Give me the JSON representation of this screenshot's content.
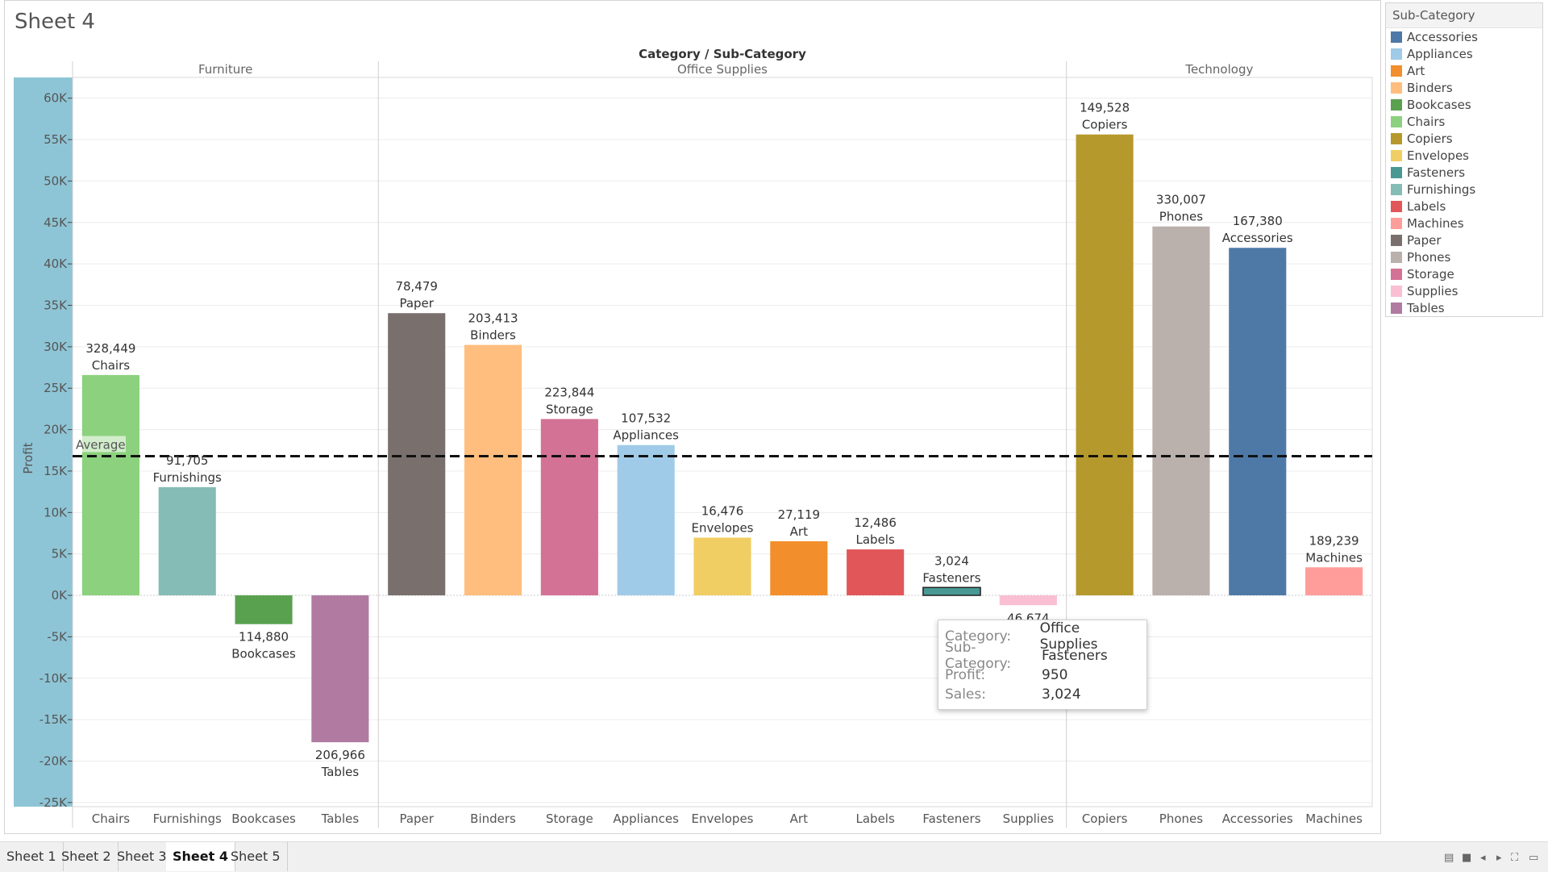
{
  "sheet_title": "Sheet 4",
  "tooltip": {
    "rows": [
      {
        "key": "Category:",
        "value": "Office Supplies"
      },
      {
        "key": "Sub-Category:",
        "value": "Fasteners"
      },
      {
        "key": "Profit:",
        "value": "950"
      },
      {
        "key": "Sales:",
        "value": "3,024"
      }
    ]
  },
  "tabs": [
    "Sheet 1",
    "Sheet 2",
    "Sheet 3",
    "Sheet 4",
    "Sheet 5"
  ],
  "active_tab": "Sheet 4",
  "legend": {
    "title": "Sub-Category",
    "items": [
      {
        "label": "Accessories",
        "color": "#4e79a7"
      },
      {
        "label": "Appliances",
        "color": "#a0cbe8"
      },
      {
        "label": "Art",
        "color": "#f28e2b"
      },
      {
        "label": "Binders",
        "color": "#ffbe7d"
      },
      {
        "label": "Bookcases",
        "color": "#59a14f"
      },
      {
        "label": "Chairs",
        "color": "#8cd17d"
      },
      {
        "label": "Copiers",
        "color": "#b6992d"
      },
      {
        "label": "Envelopes",
        "color": "#f1ce63"
      },
      {
        "label": "Fasteners",
        "color": "#499894"
      },
      {
        "label": "Furnishings",
        "color": "#86bcb6"
      },
      {
        "label": "Labels",
        "color": "#e15759"
      },
      {
        "label": "Machines",
        "color": "#ff9d9a"
      },
      {
        "label": "Paper",
        "color": "#79706e"
      },
      {
        "label": "Phones",
        "color": "#bab0ac"
      },
      {
        "label": "Storage",
        "color": "#d37295"
      },
      {
        "label": "Supplies",
        "color": "#fabfd2"
      },
      {
        "label": "Tables",
        "color": "#b07aa1"
      }
    ]
  },
  "chart_data": {
    "type": "bar",
    "header": "Category / Sub-Category",
    "ylabel": "Profit",
    "ylim": [
      -25500,
      62500
    ],
    "yticks": [
      60000,
      55000,
      50000,
      45000,
      40000,
      35000,
      30000,
      25000,
      20000,
      15000,
      10000,
      5000,
      0,
      -5000,
      -10000,
      -15000,
      -20000,
      -25000
    ],
    "ytick_labels": [
      "60K",
      "55K",
      "50K",
      "45K",
      "40K",
      "35K",
      "30K",
      "25K",
      "20K",
      "15K",
      "10K",
      "5K",
      "0K",
      "-5K",
      "-10K",
      "-15K",
      "-20K",
      "-25K"
    ],
    "average": 16800,
    "average_label": "Average",
    "categories": [
      {
        "name": "Furniture",
        "subcategories": [
          {
            "name": "Chairs",
            "profit": 26590,
            "sales": "328,449",
            "color": "#8cd17d"
          },
          {
            "name": "Furnishings",
            "profit": 13059,
            "sales": "91,705",
            "color": "#86bcb6"
          },
          {
            "name": "Bookcases",
            "profit": -3473,
            "sales": "114,880",
            "color": "#59a14f"
          },
          {
            "name": "Tables",
            "profit": -17725,
            "sales": "206,966",
            "color": "#b07aa1"
          }
        ]
      },
      {
        "name": "Office Supplies",
        "subcategories": [
          {
            "name": "Paper",
            "profit": 34054,
            "sales": "78,479",
            "color": "#79706e"
          },
          {
            "name": "Binders",
            "profit": 30222,
            "sales": "203,413",
            "color": "#ffbe7d"
          },
          {
            "name": "Storage",
            "profit": 21279,
            "sales": "223,844",
            "color": "#d37295"
          },
          {
            "name": "Appliances",
            "profit": 18138,
            "sales": "107,532",
            "color": "#a0cbe8"
          },
          {
            "name": "Envelopes",
            "profit": 6964,
            "sales": "16,476",
            "color": "#f1ce63"
          },
          {
            "name": "Art",
            "profit": 6528,
            "sales": "27,119",
            "color": "#f28e2b"
          },
          {
            "name": "Labels",
            "profit": 5546,
            "sales": "12,486",
            "color": "#e15759"
          },
          {
            "name": "Fasteners",
            "profit": 950,
            "sales": "3,024",
            "color": "#499894"
          },
          {
            "name": "Supplies",
            "profit": -1189,
            "sales": "46,674",
            "color": "#fabfd2"
          }
        ]
      },
      {
        "name": "Technology",
        "subcategories": [
          {
            "name": "Copiers",
            "profit": 55618,
            "sales": "149,528",
            "color": "#b6992d"
          },
          {
            "name": "Phones",
            "profit": 44516,
            "sales": "330,007",
            "color": "#bab0ac"
          },
          {
            "name": "Accessories",
            "profit": 41937,
            "sales": "167,380",
            "color": "#4e79a7"
          },
          {
            "name": "Machines",
            "profit": 3385,
            "sales": "189,239",
            "color": "#ff9d9a"
          }
        ]
      }
    ]
  }
}
